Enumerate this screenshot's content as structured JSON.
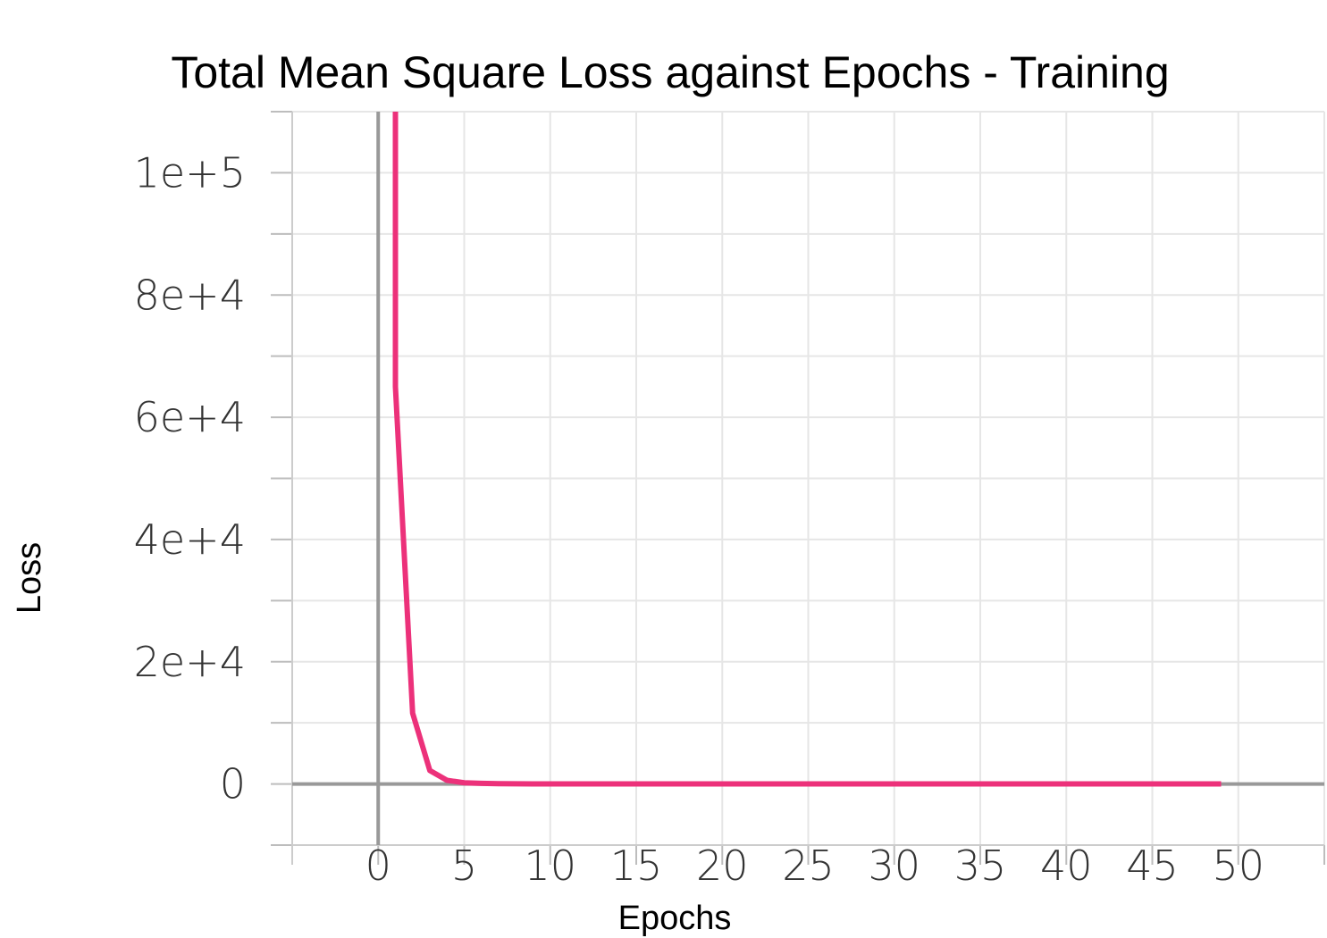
{
  "chart_data": {
    "type": "line",
    "title": "Total Mean Square Loss against Epochs - Training",
    "xlabel": "Epochs",
    "ylabel": "Loss",
    "xlim": [
      -5,
      55
    ],
    "ylim": [
      -10000,
      110000
    ],
    "x_ticks": [
      0,
      5,
      10,
      15,
      20,
      25,
      30,
      35,
      40,
      45,
      50
    ],
    "x_tick_labels": [
      "0",
      "5",
      "10",
      "15",
      "20",
      "25",
      "30",
      "35",
      "40",
      "45",
      "50"
    ],
    "y_ticks": [
      0,
      20000,
      40000,
      60000,
      80000,
      100000
    ],
    "y_tick_labels": [
      "0",
      "2e+4",
      "4e+4",
      "6e+4",
      "8e+4",
      "1e+5"
    ],
    "grid": true,
    "series": [
      {
        "color": "#ec317a",
        "x": [
          1,
          2,
          3,
          4,
          5,
          6,
          7,
          8,
          9,
          10,
          11,
          12,
          13,
          14,
          15,
          16,
          17,
          18,
          19,
          20,
          21,
          22,
          23,
          24,
          25,
          26,
          27,
          28,
          29,
          30,
          31,
          32,
          33,
          34,
          35,
          36,
          37,
          38,
          39,
          40,
          41,
          42,
          43,
          44,
          45,
          46,
          47,
          48,
          49
        ],
        "y": [
          65000,
          11600,
          2200,
          600,
          200,
          100,
          50,
          30,
          20,
          15,
          10,
          10,
          10,
          10,
          10,
          10,
          10,
          10,
          10,
          10,
          10,
          10,
          10,
          10,
          10,
          10,
          10,
          10,
          10,
          10,
          10,
          10,
          10,
          10,
          10,
          10,
          10,
          10,
          10,
          10,
          10,
          10,
          10,
          10,
          10,
          10,
          10,
          10,
          10
        ]
      }
    ]
  }
}
